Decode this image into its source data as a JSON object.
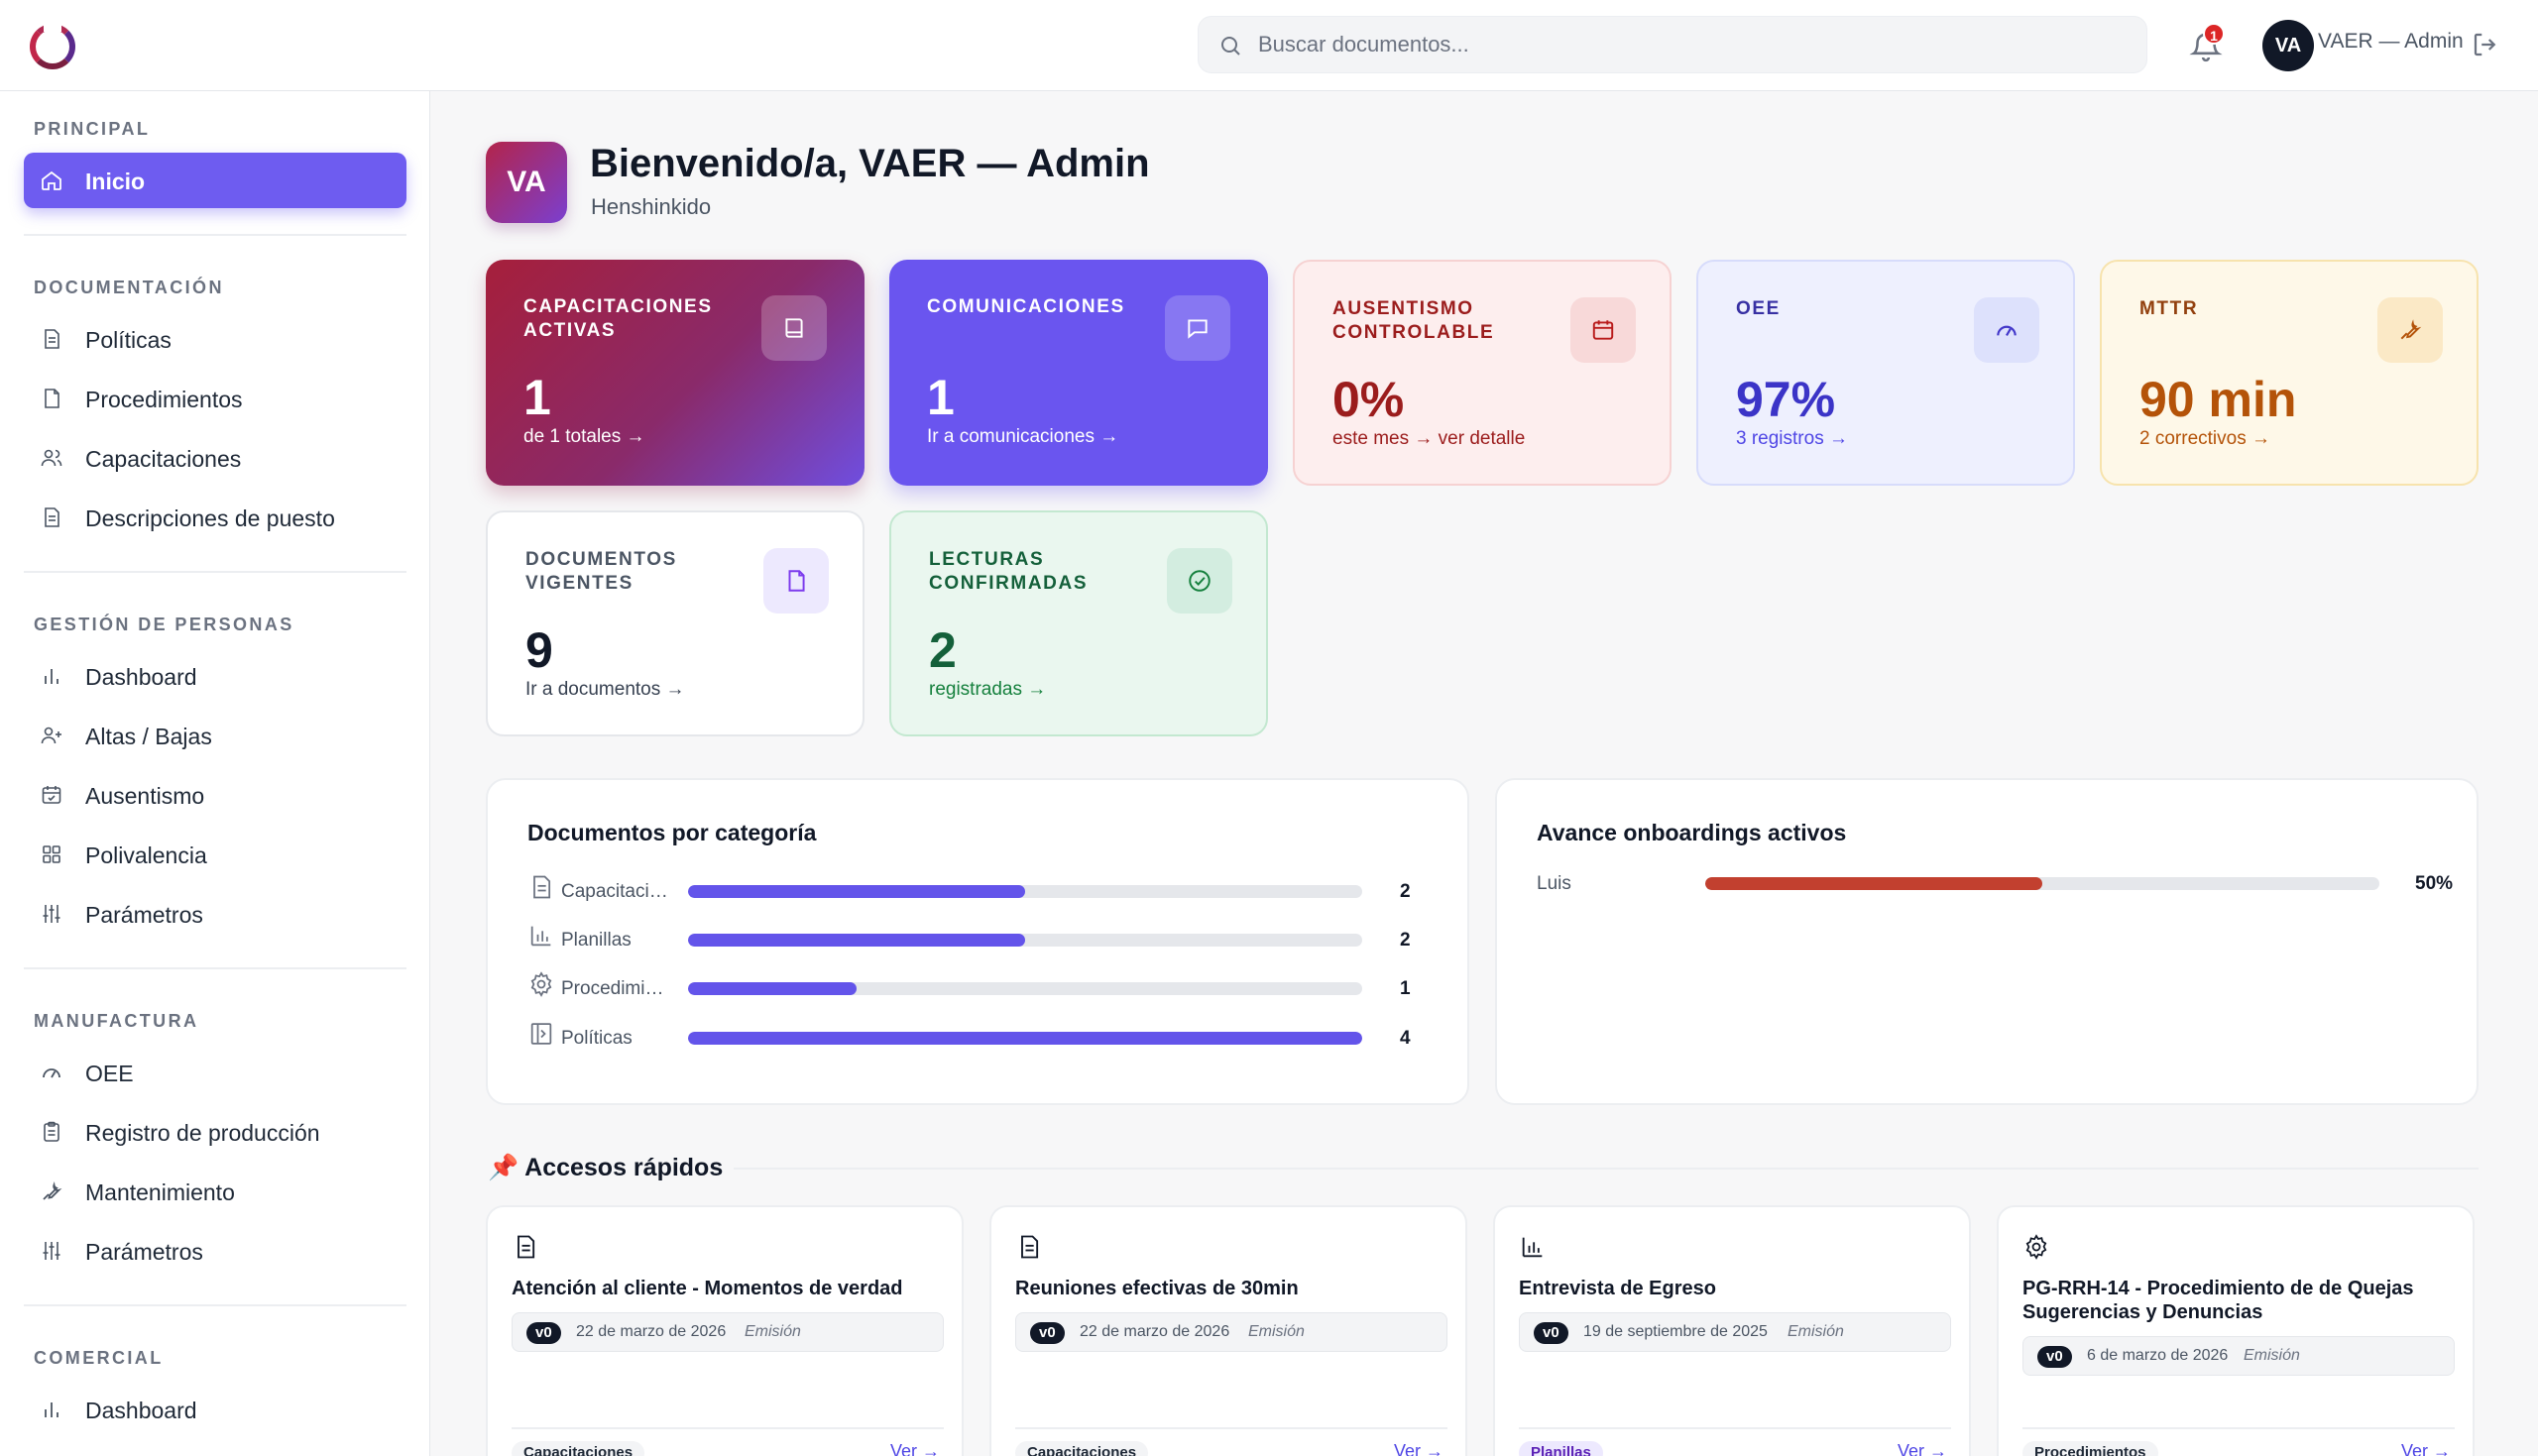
{
  "header": {
    "search_placeholder": "Buscar documentos...",
    "notifications_count": "1",
    "user_initials": "VA",
    "user_name": "VAER — Admin"
  },
  "sidebar": {
    "sections": [
      {
        "title": "PRINCIPAL",
        "items": [
          {
            "label": "Inicio",
            "icon": "home-icon",
            "active": true
          }
        ]
      },
      {
        "title": "DOCUMENTACIÓN",
        "items": [
          {
            "label": "Políticas",
            "icon": "document-icon"
          },
          {
            "label": "Procedimientos",
            "icon": "file-icon"
          },
          {
            "label": "Capacitaciones",
            "icon": "users-icon"
          },
          {
            "label": "Descripciones de puesto",
            "icon": "document-icon"
          }
        ]
      },
      {
        "title": "GESTIÓN DE PERSONAS",
        "items": [
          {
            "label": "Dashboard",
            "icon": "bar-chart-icon"
          },
          {
            "label": "Altas / Bajas",
            "icon": "user-plus-icon"
          },
          {
            "label": "Ausentismo",
            "icon": "calendar-icon"
          },
          {
            "label": "Polivalencia",
            "icon": "grid-icon"
          },
          {
            "label": "Parámetros",
            "icon": "sliders-icon"
          }
        ]
      },
      {
        "title": "MANUFACTURA",
        "items": [
          {
            "label": "OEE",
            "icon": "gauge-icon"
          },
          {
            "label": "Registro de producción",
            "icon": "clipboard-icon"
          },
          {
            "label": "Mantenimiento",
            "icon": "wrench-icon"
          },
          {
            "label": "Parámetros",
            "icon": "sliders-icon"
          }
        ]
      },
      {
        "title": "COMERCIAL",
        "items": [
          {
            "label": "Dashboard",
            "icon": "bar-chart-icon"
          }
        ]
      }
    ]
  },
  "welcome": {
    "initials": "VA",
    "title": "Bienvenido/a, VAER — Admin",
    "subtitle": "Henshinkido"
  },
  "stats": [
    {
      "label": "CAPACITACIONES ACTIVAS",
      "value": "1",
      "link": "de 1 totales →",
      "icon": "book-icon"
    },
    {
      "label": "COMUNICACIONES",
      "value": "1",
      "link": "Ir a comunicaciones →",
      "icon": "message-icon"
    },
    {
      "label": "AUSENTISMO CONTROLABLE",
      "value": "0%",
      "link": "este mes → ver detalle",
      "icon": "calendar-icon"
    },
    {
      "label": "OEE",
      "value": "97%",
      "link": "3 registros →",
      "icon": "gauge-icon"
    },
    {
      "label": "MTTR",
      "value": "90 min",
      "link": "2 correctivos →",
      "icon": "wrench-icon"
    },
    {
      "label": "DOCUMENTOS VIGENTES",
      "value": "9",
      "link": "Ir a documentos →",
      "icon": "file-icon"
    },
    {
      "label": "LECTURAS CONFIRMADAS",
      "value": "2",
      "link": "registradas →",
      "icon": "check-circle-icon"
    }
  ],
  "categories_panel": {
    "title": "Documentos por categoría",
    "max": 4,
    "rows": [
      {
        "label": "Capacitaciones",
        "count": 2,
        "icon": "document-icon"
      },
      {
        "label": "Planillas",
        "count": 2,
        "icon": "bar-chart-icon"
      },
      {
        "label": "Procedimientos",
        "count": 1,
        "icon": "gear-icon"
      },
      {
        "label": "Políticas",
        "count": 4,
        "icon": "book-open-icon"
      }
    ]
  },
  "onboarding_panel": {
    "title": "Avance onboardings activos",
    "rows": [
      {
        "name": "Luis",
        "progress": 0.5,
        "label": "50%"
      }
    ]
  },
  "quick_access": {
    "title": "Accesos rápidos",
    "open_label": "Ver →",
    "cards": [
      {
        "name": "Atención al cliente - Momentos de verdad",
        "version": "v0",
        "date": "22 de marzo de 2026",
        "status": "Emisión",
        "tag": "Capacitaciones",
        "icon": "document-icon"
      },
      {
        "name": "Reuniones efectivas de 30min",
        "version": "v0",
        "date": "22 de marzo de 2026",
        "status": "Emisión",
        "tag": "Capacitaciones",
        "icon": "document-icon"
      },
      {
        "name": "Entrevista de Egreso",
        "version": "v0",
        "date": "19 de septiembre de 2025",
        "status": "Emisión",
        "tag": "Planillas",
        "icon": "bar-chart-icon"
      },
      {
        "name": "PG-RRH-14 - Procedimiento de de Quejas Sugerencias y Denuncias",
        "version": "v0",
        "date": "6 de marzo de 2026",
        "status": "Emisión",
        "tag": "Procedimientos",
        "icon": "gear-icon"
      }
    ]
  },
  "colors": {
    "accent": "#6e5cf0",
    "onboarding_bar": "#c2402f"
  }
}
